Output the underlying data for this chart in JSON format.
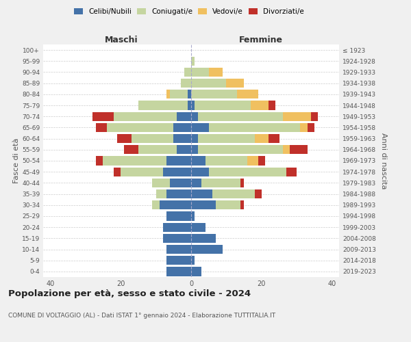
{
  "age_groups": [
    "0-4",
    "5-9",
    "10-14",
    "15-19",
    "20-24",
    "25-29",
    "30-34",
    "35-39",
    "40-44",
    "45-49",
    "50-54",
    "55-59",
    "60-64",
    "65-69",
    "70-74",
    "75-79",
    "80-84",
    "85-89",
    "90-94",
    "95-99",
    "100+"
  ],
  "birth_years": [
    "2019-2023",
    "2014-2018",
    "2009-2013",
    "2004-2008",
    "1999-2003",
    "1994-1998",
    "1989-1993",
    "1984-1988",
    "1979-1983",
    "1974-1978",
    "1969-1973",
    "1964-1968",
    "1959-1963",
    "1954-1958",
    "1949-1953",
    "1944-1948",
    "1939-1943",
    "1934-1938",
    "1929-1933",
    "1924-1928",
    "≤ 1923"
  ],
  "colors": {
    "celibi": "#4472a8",
    "coniugati": "#c5d5a0",
    "vedovi": "#f0c060",
    "divorziati": "#c0302a"
  },
  "maschi": {
    "celibi": [
      7,
      7,
      7,
      8,
      8,
      7,
      9,
      7,
      6,
      8,
      7,
      4,
      5,
      5,
      4,
      1,
      1,
      0,
      0,
      0,
      0
    ],
    "coniugati": [
      0,
      0,
      0,
      0,
      0,
      0,
      2,
      3,
      5,
      12,
      18,
      11,
      12,
      19,
      18,
      14,
      5,
      3,
      2,
      0,
      0
    ],
    "vedovi": [
      0,
      0,
      0,
      0,
      0,
      0,
      0,
      0,
      0,
      0,
      0,
      0,
      0,
      0,
      0,
      0,
      1,
      0,
      0,
      0,
      0
    ],
    "divorziati": [
      0,
      0,
      0,
      0,
      0,
      0,
      0,
      0,
      0,
      2,
      2,
      4,
      4,
      3,
      6,
      0,
      0,
      0,
      0,
      0,
      0
    ]
  },
  "femmine": {
    "nubili": [
      3,
      1,
      9,
      7,
      4,
      1,
      7,
      6,
      3,
      5,
      4,
      2,
      2,
      5,
      2,
      1,
      0,
      0,
      0,
      0,
      0
    ],
    "coniugate": [
      0,
      0,
      0,
      0,
      0,
      0,
      7,
      12,
      11,
      22,
      12,
      24,
      16,
      26,
      24,
      16,
      13,
      10,
      5,
      1,
      0
    ],
    "vedove": [
      0,
      0,
      0,
      0,
      0,
      0,
      0,
      0,
      0,
      0,
      3,
      2,
      4,
      2,
      8,
      5,
      6,
      5,
      4,
      0,
      0
    ],
    "divorziate": [
      0,
      0,
      0,
      0,
      0,
      0,
      1,
      2,
      1,
      3,
      2,
      5,
      3,
      2,
      2,
      2,
      0,
      0,
      0,
      0,
      0
    ]
  },
  "title": "Popolazione per età, sesso e stato civile - 2024",
  "subtitle": "COMUNE DI VOLTAGGIO (AL) - Dati ISTAT 1° gennaio 2024 - Elaborazione TUTTITALIA.IT",
  "xlabel_maschi": "Maschi",
  "xlabel_femmine": "Femmine",
  "ylabel_left": "Fasce di età",
  "ylabel_right": "Anni di nascita",
  "xlim": 42,
  "background_color": "#f0f0f0",
  "plot_background": "#ffffff"
}
